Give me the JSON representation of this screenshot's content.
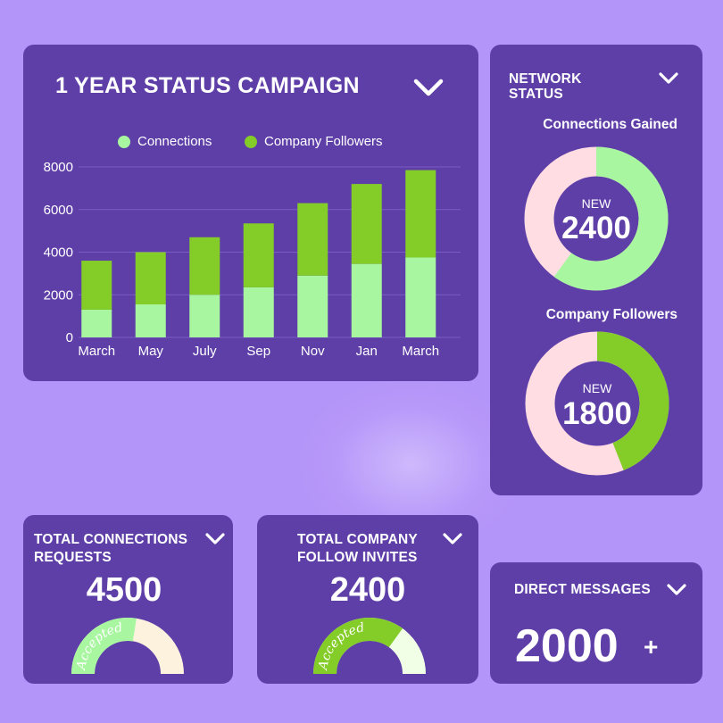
{
  "campaign": {
    "title": "1 YEAR STATUS CAMPAIGN",
    "legend": [
      {
        "label": "Connections",
        "color": "#a8f7a0"
      },
      {
        "label": "Company Followers",
        "color": "#84cc28"
      }
    ]
  },
  "chart_data": {
    "type": "bar",
    "stacked": true,
    "categories": [
      "March",
      "May",
      "July",
      "Sep",
      "Nov",
      "Jan",
      "March"
    ],
    "series": [
      {
        "name": "Connections",
        "values": [
          1300,
          1550,
          2000,
          2350,
          2900,
          3450,
          3750
        ]
      },
      {
        "name": "Company Followers",
        "values": [
          2300,
          2450,
          2700,
          3000,
          3400,
          3750,
          4100
        ]
      }
    ],
    "yticks": [
      "0",
      "2000",
      "4000",
      "6000",
      "8000"
    ],
    "ylim": [
      0,
      8000
    ],
    "grid": true,
    "legend_position": "top"
  },
  "network": {
    "title_line1": "NETWORK",
    "title_line2": "STATUS",
    "connections": {
      "title": "Connections Gained",
      "label": "NEW",
      "value": "2400",
      "fraction": 0.6,
      "color": "#a8f7a0"
    },
    "followers": {
      "title": "Company Followers",
      "label": "NEW",
      "value": "1800",
      "fraction": 0.44,
      "color": "#84cc28"
    },
    "track_color": "#ffdde3"
  },
  "total_connections": {
    "title_line1": "TOTAL CONNECTIONS",
    "title_line2": "REQUESTS",
    "value": "4500",
    "gauge_label": "Accepted",
    "fraction": 0.55,
    "fill_color": "#a8f7a0",
    "track_color": "#fdf2de"
  },
  "total_follow": {
    "title_line1": "TOTAL COMPANY",
    "title_line2": "FOLLOW INVITES",
    "value": "2400",
    "gauge_label": "Accepted",
    "fraction": 0.7,
    "fill_color": "#84cc28",
    "track_color": "#f0ffe6"
  },
  "direct_messages": {
    "title": "DIRECT MESSAGES",
    "value": "2000",
    "suffix": "+"
  }
}
